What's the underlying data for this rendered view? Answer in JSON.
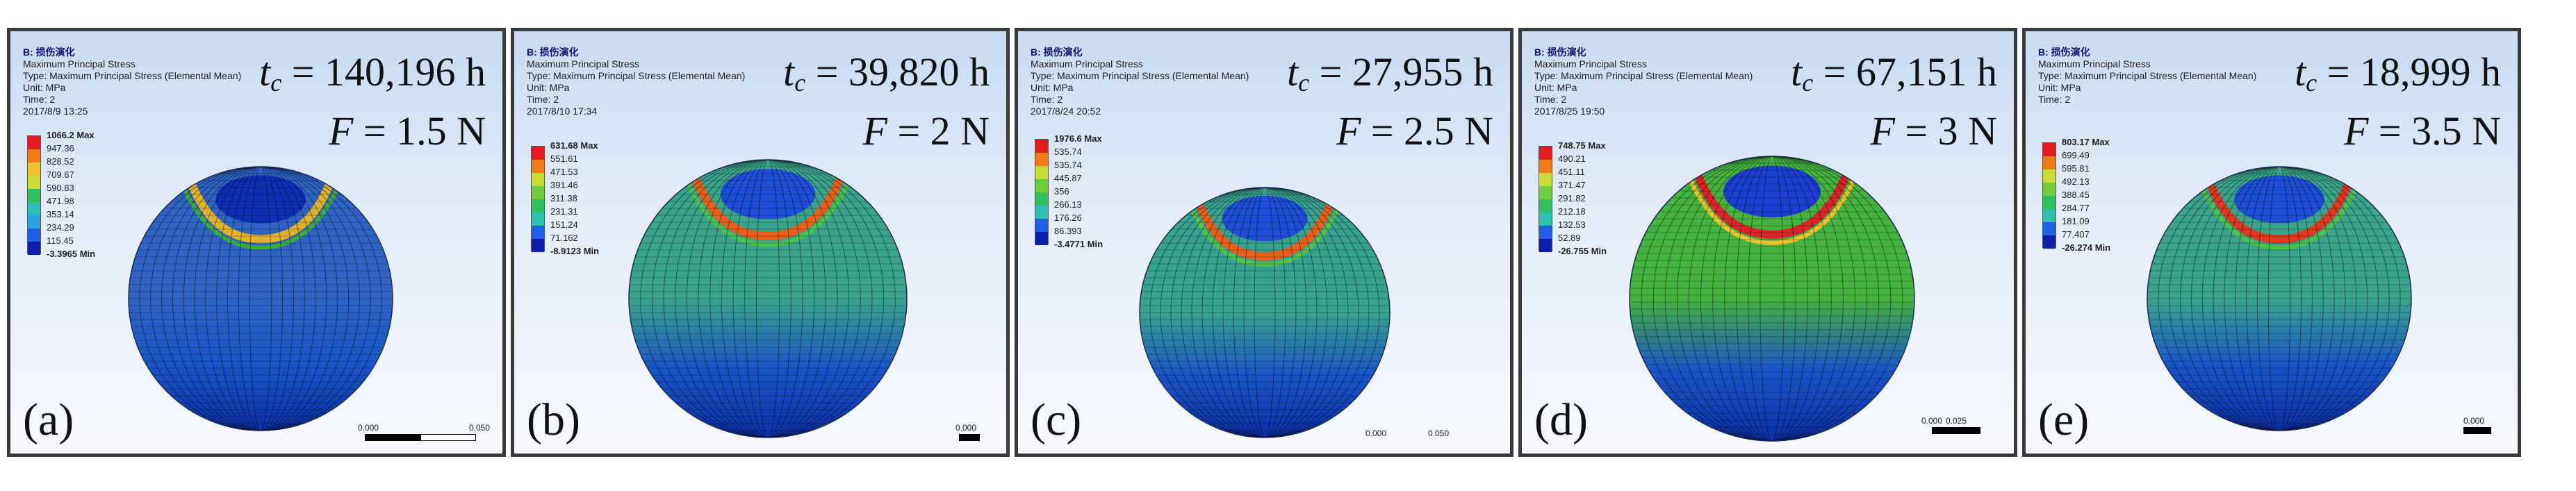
{
  "panels": [
    {
      "label": "(a)",
      "header": [
        "B: 损伤演化",
        "Maximum Principal Stress",
        "Type: Maximum Principal Stress (Elemental Mean)",
        "Unit: MPa",
        "Time: 2",
        "2017/8/9 13:25"
      ],
      "tc": "140,196 h",
      "F": "1.5 N",
      "legend": [
        "1066.2 Max",
        "947.36",
        "828.52",
        "709.67",
        "590.83",
        "471.98",
        "353.14",
        "234.29",
        "115.45",
        "-3.3965 Min"
      ],
      "scale": [
        "0.000",
        "0.050"
      ],
      "colors": {
        "shell": "#2f63c4",
        "cap": "#0e2fb4",
        "ring": "#e0b12b",
        "ring2": "#3aaa43"
      }
    },
    {
      "label": "(b)",
      "header": [
        "B: 损伤演化",
        "Maximum Principal Stress",
        "Type: Maximum Principal Stress (Elemental Mean)",
        "Unit: MPa",
        "Time: 2",
        "2017/8/10 17:34"
      ],
      "tc": "39,820 h",
      "F": "2 N",
      "legend": [
        "631.68 Max",
        "551.61",
        "471.53",
        "391.46",
        "311.38",
        "231.31",
        "151.24",
        "71.162",
        "-8.9123 Min"
      ],
      "scale": [
        "0.000"
      ],
      "colors": {
        "shell": "#3aa58a",
        "cap": "#1f4fd8",
        "ring": "#e8601c",
        "ring2": "#4cc24a"
      }
    },
    {
      "label": "(c)",
      "header": [
        "B: 损伤演化",
        "Maximum Principal Stress",
        "Type: Maximum Principal Stress (Elemental Mean)",
        "Unit: MPa",
        "Time: 2",
        "2017/8/24 20:52"
      ],
      "tc": "27,955 h",
      "F": "2.5 N",
      "legend": [
        "1976.6 Max",
        "535.74",
        "535.74",
        "445.87",
        "356",
        "266.13",
        "176.26",
        "86.393",
        "-3.4771 Min"
      ],
      "scale": [
        "0.000",
        "0.050"
      ],
      "colors": {
        "shell": "#38a38e",
        "cap": "#1f4fd8",
        "ring": "#e8601c",
        "ring2": "#52c24d"
      }
    },
    {
      "label": "(d)",
      "header": [
        "B: 损伤演化",
        "Maximum Principal Stress",
        "Type: Maximum Principal Stress (Elemental Mean)",
        "Unit: MPa",
        "Time: 2",
        "2017/8/25 19:50"
      ],
      "tc": "67,151 h",
      "F": "3 N",
      "legend": [
        "748.75 Max",
        "490.21",
        "451.11",
        "371.47",
        "291.82",
        "212.18",
        "132.53",
        "52.89",
        "-26.755 Min"
      ],
      "scale": [
        "0.000",
        "0.025"
      ],
      "colors": {
        "shell": "#45b33f",
        "cap": "#1b3fd0",
        "ring": "#d8262a",
        "ring2": "#f0c22b"
      }
    },
    {
      "label": "(e)",
      "header": [
        "B: 损伤演化",
        "Maximum Principal Stress",
        "Type: Maximum Principal Stress (Elemental Mean)",
        "Unit: MPa",
        "Time: 2"
      ],
      "tc": "18,999 h",
      "F": "3.5 N",
      "legend": [
        "803.17 Max",
        "699.49",
        "595.81",
        "492.13",
        "388.45",
        "284.77",
        "181.09",
        "77.407",
        "-26.274 Min"
      ],
      "scale": [
        "0.000"
      ],
      "colors": {
        "shell": "#3aa58a",
        "cap": "#1f4fd8",
        "ring": "#e03a22",
        "ring2": "#4cc24a"
      }
    }
  ],
  "legend_colors": [
    "#e41a1c",
    "#f07c18",
    "#f0c22b",
    "#c8dc33",
    "#6fcc3d",
    "#30c060",
    "#2fc1b0",
    "#2aa3e0",
    "#1f5fe6",
    "#0d1ea8"
  ]
}
